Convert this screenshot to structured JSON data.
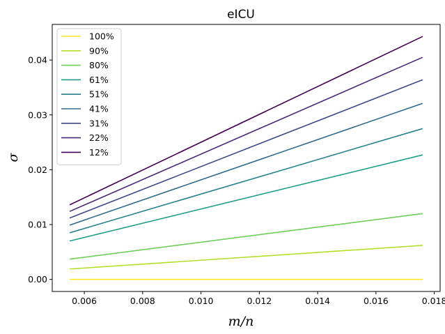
{
  "chart_data": {
    "type": "line",
    "title": "eICU",
    "xlabel": "m/n",
    "ylabel": "σ",
    "xlim": [
      0.0049,
      0.0182
    ],
    "ylim": [
      -0.0022,
      0.0465
    ],
    "xticks": [
      0.006,
      0.008,
      0.01,
      0.012,
      0.014,
      0.016,
      0.018
    ],
    "xtick_labels": [
      "0.006",
      "0.008",
      "0.010",
      "0.012",
      "0.014",
      "0.016",
      "0.018"
    ],
    "yticks": [
      0.0,
      0.01,
      0.02,
      0.03,
      0.04
    ],
    "ytick_labels": [
      "0.00",
      "0.01",
      "0.02",
      "0.03",
      "0.04"
    ],
    "grid": false,
    "legend_position": "top-left",
    "x": [
      0.0055,
      0.0176
    ],
    "series": [
      {
        "name": "100%",
        "color": "#fde725",
        "values": [
          0.0,
          0.0
        ]
      },
      {
        "name": "90%",
        "color": "#b5de2b",
        "values": [
          0.0019,
          0.0062
        ]
      },
      {
        "name": "80%",
        "color": "#6ece58",
        "values": [
          0.0037,
          0.012
        ]
      },
      {
        "name": "61%",
        "color": "#1f9e89",
        "values": [
          0.007,
          0.0227
        ]
      },
      {
        "name": "51%",
        "color": "#26828e",
        "values": [
          0.0085,
          0.0275
        ]
      },
      {
        "name": "41%",
        "color": "#31688e",
        "values": [
          0.0099,
          0.0321
        ]
      },
      {
        "name": "31%",
        "color": "#3e4989",
        "values": [
          0.0112,
          0.0364
        ]
      },
      {
        "name": "22%",
        "color": "#482878",
        "values": [
          0.0124,
          0.0405
        ]
      },
      {
        "name": "12%",
        "color": "#440154",
        "values": [
          0.0136,
          0.0443
        ]
      }
    ]
  }
}
